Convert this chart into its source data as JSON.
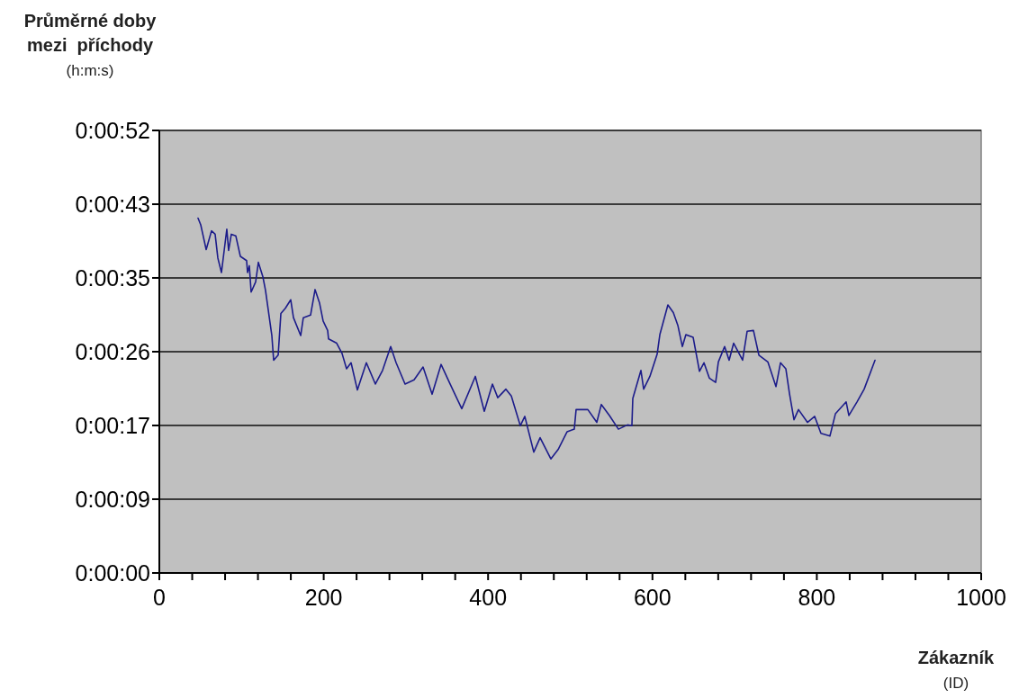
{
  "chart_data": {
    "type": "line",
    "ylabel": "Průměrné doby\nmezi  příchody\n(h:m:s)",
    "xlabel": "Zákazník\n(ID)",
    "xlim": [
      0,
      1000
    ],
    "xticks": [
      0,
      {
        "value": 40,
        "label": null
      },
      {
        "value": 80,
        "label": null
      },
      {
        "value": 120,
        "label": null
      },
      {
        "value": 160,
        "label": null
      },
      200,
      {
        "value": 240,
        "label": null
      },
      {
        "value": 280,
        "label": null
      },
      {
        "value": 320,
        "label": null
      },
      {
        "value": 360,
        "label": null
      },
      400,
      {
        "value": 440,
        "label": null
      },
      {
        "value": 480,
        "label": null
      },
      {
        "value": 520,
        "label": null
      },
      {
        "value": 560,
        "label": null
      },
      600,
      {
        "value": 640,
        "label": null
      },
      {
        "value": 680,
        "label": null
      },
      {
        "value": 720,
        "label": null
      },
      {
        "value": 760,
        "label": null
      },
      800,
      {
        "value": 840,
        "label": null
      },
      {
        "value": 880,
        "label": null
      },
      {
        "value": 920,
        "label": null
      },
      {
        "value": 960,
        "label": null
      },
      1000
    ],
    "ylim": [
      0,
      52
    ],
    "yticks": [
      {
        "value": 0,
        "label": "0:00:00"
      },
      {
        "value": 8.67,
        "label": "0:00:09"
      },
      {
        "value": 17.33,
        "label": "0:00:17"
      },
      {
        "value": 26,
        "label": "0:00:26"
      },
      {
        "value": 34.67,
        "label": "0:00:35"
      },
      {
        "value": 43.33,
        "label": "0:00:43"
      },
      {
        "value": 52,
        "label": "0:00:52"
      }
    ],
    "grid": "y",
    "marker": "none",
    "line_style": "solid",
    "series": [
      {
        "color": "#1c1c8a",
        "x": [
          47.1,
          50.4,
          57.0,
          63.5,
          67.9,
          71.2,
          75.6,
          82.1,
          84.3,
          87.6,
          93.1,
          98.6,
          106.2,
          107.3,
          109.5,
          111.7,
          117.2,
          120.5,
          126.0,
          129.2,
          136.9,
          139.1,
          144.6,
          147.9,
          153.3,
          159.9,
          163.2,
          172.0,
          175.2,
          184.0,
          189.5,
          195.0,
          199.3,
          204.8,
          205.9,
          215.8,
          222.3,
          227.8,
          233.3,
          241.0,
          251.9,
          262.9,
          271.6,
          281.5,
          288.1,
          299.0,
          310.0,
          320.9,
          331.9,
          342.8,
          353.8,
          368.0,
          384.5,
          395.4,
          405.3,
          411.8,
          421.7,
          428.3,
          439.2,
          444.7,
          455.6,
          463.3,
          476.4,
          485.2,
          496.2,
          504.9,
          507.1,
          521.4,
          532.3,
          537.8,
          547.7,
          558.6,
          569.6,
          575.0,
          576.1,
          586.0,
          589.3,
          596.9,
          605.7,
          609.0,
          618.8,
          625.4,
          630.9,
          636.4,
          640.7,
          649.5,
          657.2,
          662.7,
          669.2,
          676.9,
          680.2,
          687.8,
          693.3,
          698.8,
          709.7,
          715.2,
          722.9,
          729.5,
          740.4,
          750.3,
          755.8,
          762.3,
          766.7,
          772.2,
          777.7,
          788.6,
          797.4,
          805.0,
          816.0,
          822.6,
          835.7,
          839.0,
          848.9,
          857.6,
          870.8
        ],
        "values": [
          41.7,
          40.9,
          38.0,
          40.2,
          39.8,
          37.0,
          35.3,
          40.4,
          37.9,
          39.8,
          39.6,
          37.2,
          36.7,
          35.3,
          36.1,
          33.0,
          34.2,
          36.5,
          34.8,
          33.2,
          27.9,
          25.0,
          25.6,
          30.5,
          31.1,
          32.1,
          30.0,
          27.9,
          30.0,
          30.3,
          33.3,
          31.7,
          29.6,
          28.5,
          27.5,
          27.0,
          25.8,
          24.0,
          24.7,
          21.5,
          24.7,
          22.2,
          23.8,
          26.6,
          24.7,
          22.2,
          22.7,
          24.2,
          21.0,
          24.5,
          22.2,
          19.3,
          23.1,
          19.0,
          22.2,
          20.6,
          21.6,
          20.8,
          17.3,
          18.4,
          14.2,
          15.9,
          13.4,
          14.5,
          16.6,
          16.9,
          19.2,
          19.2,
          17.7,
          19.8,
          18.5,
          16.9,
          17.4,
          17.3,
          20.5,
          23.8,
          21.6,
          23.1,
          25.7,
          28.0,
          31.5,
          30.6,
          29.1,
          26.6,
          28.0,
          27.7,
          23.7,
          24.7,
          22.9,
          22.4,
          24.8,
          26.6,
          25.0,
          27.0,
          25.0,
          28.4,
          28.5,
          25.6,
          24.8,
          21.9,
          24.7,
          24.0,
          21.1,
          18.0,
          19.2,
          17.7,
          18.4,
          16.4,
          16.1,
          18.7,
          20.1,
          18.5,
          20.1,
          21.6,
          25.0
        ]
      }
    ]
  }
}
